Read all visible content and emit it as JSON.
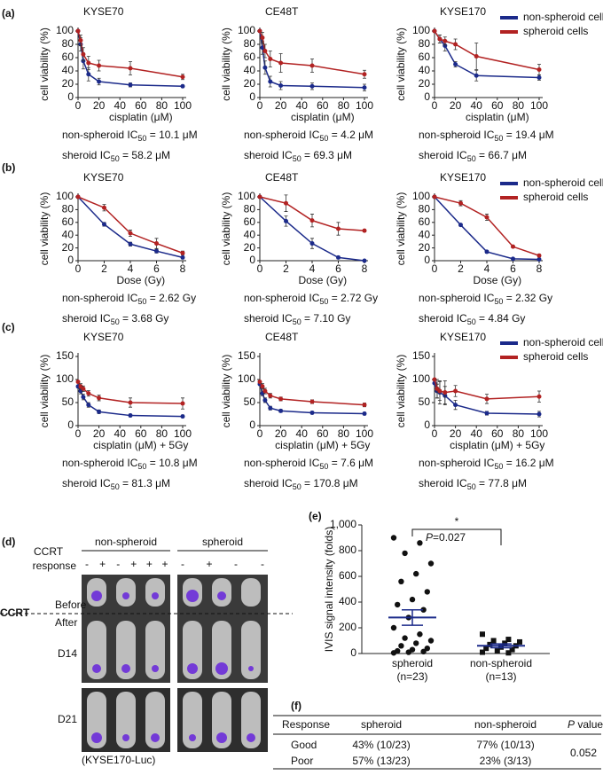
{
  "panel_labels": [
    "(a)",
    "(b)",
    "(c)",
    "(d)",
    "(e)",
    "(f)"
  ],
  "chart_data": [
    {
      "type": "line",
      "title": "KYSE70",
      "x_label": "cisplatin (μM)",
      "y_label": "cell viability (%)",
      "x": [
        0,
        2.5,
        5,
        10,
        20,
        50,
        100
      ],
      "xlim": [
        0,
        100
      ],
      "xticks": [
        0,
        20,
        40,
        60,
        80,
        100
      ],
      "ylim": [
        0,
        100
      ],
      "yticks": [
        0,
        20,
        40,
        60,
        80,
        100
      ],
      "series": [
        {
          "color": "#1b2a8a",
          "values": [
            100,
            80,
            55,
            35,
            24,
            19,
            17
          ],
          "errors": [
            0,
            10,
            12,
            10,
            5,
            3,
            2
          ]
        },
        {
          "color": "#b22222",
          "values": [
            100,
            86,
            65,
            52,
            48,
            44,
            31
          ],
          "errors": [
            0,
            8,
            10,
            10,
            8,
            10,
            4
          ]
        }
      ],
      "ic50": [
        {
          "text": "non-spheroid IC",
          "sub": "50",
          "value": " = 10.1 μM"
        },
        {
          "text": "sheroid IC",
          "sub": "50",
          "value": " = 58.2 μM"
        }
      ]
    },
    {
      "type": "line",
      "title": "CE48T",
      "x_label": "cisplatin (μM)",
      "y_label": "cell viability (%)",
      "x": [
        0,
        2.5,
        5,
        10,
        20,
        50,
        100
      ],
      "xlim": [
        0,
        100
      ],
      "xticks": [
        0,
        20,
        40,
        60,
        80,
        100
      ],
      "ylim": [
        0,
        100
      ],
      "yticks": [
        0,
        20,
        40,
        60,
        80,
        100
      ],
      "series": [
        {
          "color": "#1b2a8a",
          "values": [
            100,
            75,
            45,
            24,
            18,
            17,
            15
          ],
          "errors": [
            0,
            10,
            10,
            8,
            6,
            5,
            5
          ]
        },
        {
          "color": "#b22222",
          "values": [
            100,
            90,
            70,
            58,
            52,
            48,
            35
          ],
          "errors": [
            0,
            8,
            10,
            12,
            14,
            10,
            6
          ]
        }
      ],
      "ic50": [
        {
          "text": "non-spheroid IC",
          "sub": "50",
          "value": " = 4.2 μM"
        },
        {
          "text": "sheroid IC",
          "sub": "50",
          "value": " = 69.3 μM"
        }
      ]
    },
    {
      "type": "line",
      "title": "KYSE170",
      "x_label": "cisplatin (μM)",
      "y_label": "cell viability (%)",
      "x": [
        0,
        5,
        10,
        20,
        40,
        100
      ],
      "xlim": [
        0,
        100
      ],
      "xticks": [
        0,
        20,
        40,
        60,
        80,
        100
      ],
      "ylim": [
        0,
        100
      ],
      "yticks": [
        0,
        20,
        40,
        60,
        80,
        100
      ],
      "legend": "upper-right",
      "series": [
        {
          "name": "non-spheroid cells",
          "color": "#1b2a8a",
          "values": [
            100,
            88,
            78,
            50,
            33,
            30
          ],
          "errors": [
            0,
            6,
            8,
            4,
            8,
            4
          ]
        },
        {
          "name": "spheroid cells",
          "color": "#b22222",
          "values": [
            100,
            88,
            85,
            80,
            62,
            42
          ],
          "errors": [
            0,
            6,
            6,
            8,
            20,
            8
          ]
        }
      ],
      "ic50": [
        {
          "text": "non-spheroid IC",
          "sub": "50",
          "value": " = 19.4 μM"
        },
        {
          "text": "sheroid IC",
          "sub": "50",
          "value": " = 66.7 μM"
        }
      ]
    },
    {
      "type": "line",
      "title": "KYSE70",
      "x_label": "Dose (Gy)",
      "y_label": "cell viability (%)",
      "x": [
        0,
        2,
        4,
        6,
        8
      ],
      "xlim": [
        0,
        8
      ],
      "xticks": [
        0,
        2,
        4,
        6,
        8
      ],
      "ylim": [
        0,
        100
      ],
      "yticks": [
        0,
        20,
        40,
        60,
        80,
        100
      ],
      "series": [
        {
          "color": "#1b2a8a",
          "values": [
            100,
            57,
            26,
            15,
            5
          ],
          "errors": [
            0,
            3,
            3,
            3,
            2
          ]
        },
        {
          "color": "#b22222",
          "values": [
            100,
            83,
            43,
            27,
            12
          ],
          "errors": [
            0,
            5,
            5,
            8,
            3
          ]
        }
      ],
      "ic50": [
        {
          "text": "non-spheroid IC",
          "sub": "50",
          "value": " = 2.62 Gy"
        },
        {
          "text": "sheroid IC",
          "sub": "50",
          "value": " = 3.68 Gy"
        }
      ]
    },
    {
      "type": "line",
      "title": "CE48T",
      "x_label": "Dose (Gy)",
      "y_label": "cell viability (%)",
      "x": [
        0,
        2,
        4,
        6,
        8
      ],
      "xlim": [
        0,
        8
      ],
      "xticks": [
        0,
        2,
        4,
        6,
        8
      ],
      "ylim": [
        0,
        100
      ],
      "yticks": [
        0,
        20,
        40,
        60,
        80,
        100
      ],
      "series": [
        {
          "color": "#1b2a8a",
          "values": [
            100,
            62,
            27,
            5,
            0
          ],
          "errors": [
            0,
            8,
            8,
            2,
            0
          ]
        },
        {
          "color": "#b22222",
          "values": [
            100,
            90,
            63,
            50,
            47
          ],
          "errors": [
            0,
            13,
            10,
            10,
            2
          ]
        }
      ],
      "ic50": [
        {
          "text": "non-spheroid IC",
          "sub": "50",
          "value": " = 2.72 Gy"
        },
        {
          "text": "sheroid IC",
          "sub": "50",
          "value": " = 7.10 Gy"
        }
      ]
    },
    {
      "type": "line",
      "title": "KYSE170",
      "x_label": "Dose (Gy)",
      "y_label": "cell viability (%)",
      "x": [
        0,
        2,
        4,
        6,
        8
      ],
      "xlim": [
        0,
        8
      ],
      "xticks": [
        0,
        2,
        4,
        6,
        8
      ],
      "ylim": [
        0,
        100
      ],
      "yticks": [
        0,
        20,
        40,
        60,
        80,
        100
      ],
      "legend": "upper-right",
      "series": [
        {
          "name": "non-spheroid cells",
          "color": "#1b2a8a",
          "values": [
            100,
            56,
            14,
            3,
            2
          ],
          "errors": [
            0,
            2,
            2,
            1,
            1
          ]
        },
        {
          "name": "spheroid cells",
          "color": "#b22222",
          "values": [
            100,
            90,
            68,
            22,
            8
          ],
          "errors": [
            0,
            4,
            5,
            2,
            2
          ]
        }
      ],
      "ic50": [
        {
          "text": "non-spheroid IC",
          "sub": "50",
          "value": " = 2.32 Gy"
        },
        {
          "text": "sheroid IC",
          "sub": "50",
          "value": " = 4.84 Gy"
        }
      ]
    },
    {
      "type": "line",
      "title": "KYSE70",
      "x_label": "cisplatin (μM) + 5Gy",
      "y_label": "cell viability (%)",
      "x": [
        0,
        2.5,
        5,
        10,
        20,
        50,
        100
      ],
      "xlim": [
        0,
        100
      ],
      "xticks": [
        0,
        20,
        40,
        60,
        80,
        100
      ],
      "ylim": [
        0,
        150
      ],
      "yticks": [
        0,
        50,
        100,
        150
      ],
      "series": [
        {
          "color": "#1b2a8a",
          "values": [
            85,
            75,
            62,
            45,
            30,
            22,
            20
          ],
          "errors": [
            0,
            6,
            6,
            5,
            4,
            3,
            3
          ]
        },
        {
          "color": "#b22222",
          "values": [
            95,
            85,
            80,
            70,
            60,
            50,
            48
          ],
          "errors": [
            0,
            6,
            6,
            6,
            6,
            10,
            12
          ]
        }
      ],
      "ic50": [
        {
          "text": "non-spheroid IC",
          "sub": "50",
          "value": " = 10.8 μM"
        },
        {
          "text": "sheroid IC",
          "sub": "50",
          "value": " = 81.3 μM"
        }
      ]
    },
    {
      "type": "line",
      "title": "CE48T",
      "x_label": "cisplatin (μM) + 5Gy",
      "y_label": "cell viability (%)",
      "x": [
        0,
        2.5,
        5,
        10,
        20,
        50,
        100
      ],
      "xlim": [
        0,
        100
      ],
      "xticks": [
        0,
        20,
        40,
        60,
        80,
        100
      ],
      "ylim": [
        0,
        150
      ],
      "yticks": [
        0,
        50,
        100,
        150
      ],
      "series": [
        {
          "color": "#1b2a8a",
          "values": [
            90,
            70,
            55,
            38,
            32,
            28,
            26
          ],
          "errors": [
            0,
            5,
            5,
            4,
            3,
            3,
            3
          ]
        },
        {
          "color": "#b22222",
          "values": [
            95,
            85,
            75,
            65,
            58,
            52,
            45
          ],
          "errors": [
            0,
            6,
            6,
            5,
            4,
            4,
            4
          ]
        }
      ],
      "ic50": [
        {
          "text": "non-spheroid IC",
          "sub": "50",
          "value": " = 7.6 μM"
        },
        {
          "text": "sheroid IC",
          "sub": "50",
          "value": " = 170.8 μM"
        }
      ]
    },
    {
      "type": "line",
      "title": "KYSE170",
      "x_label": "cisplatin (μM) + 5Gy",
      "y_label": "cell viability (%)",
      "x": [
        0,
        2.5,
        5,
        10,
        20,
        50,
        100
      ],
      "xlim": [
        0,
        100
      ],
      "xticks": [
        0,
        20,
        40,
        60,
        80,
        100
      ],
      "ylim": [
        0,
        150
      ],
      "yticks": [
        0,
        50,
        100,
        150
      ],
      "legend": "upper-right",
      "series": [
        {
          "name": "non-spheroid cells",
          "color": "#1b2a8a",
          "values": [
            92,
            75,
            72,
            65,
            45,
            27,
            25
          ],
          "errors": [
            0,
            15,
            25,
            20,
            10,
            4,
            6
          ]
        },
        {
          "name": "spheroid cells",
          "color": "#b22222",
          "values": [
            100,
            80,
            75,
            72,
            75,
            58,
            63
          ],
          "errors": [
            0,
            20,
            20,
            25,
            12,
            10,
            12
          ]
        }
      ],
      "ic50": [
        {
          "text": "non-spheroid IC",
          "sub": "50",
          "value": " = 16.2 μM"
        },
        {
          "text": "sheroid IC",
          "sub": "50",
          "value": " = 77.8 μM"
        }
      ]
    },
    {
      "type": "dot",
      "y_label": "IVIS signal intensity (folds)",
      "ylim": [
        0,
        1000
      ],
      "yticks": [
        0,
        200,
        400,
        600,
        800,
        {
          "value": 1000,
          "label": "1,000"
        }
      ],
      "annotation": "*",
      "p_value": {
        "symbol": "P",
        "text": "=0.027"
      },
      "groups": [
        {
          "name": "spheroid",
          "note": "(n=23)",
          "marker": "circle",
          "values": [
            900,
            860,
            780,
            700,
            620,
            560,
            480,
            420,
            380,
            340,
            280,
            200,
            150,
            120,
            100,
            80,
            60,
            40,
            30,
            20,
            15,
            10,
            5
          ],
          "mean": 280,
          "sem": 60
        },
        {
          "name": "non-spheroid",
          "note": "(n=13)",
          "marker": "square",
          "values": [
            150,
            110,
            100,
            90,
            80,
            70,
            60,
            50,
            40,
            30,
            20,
            10,
            5
          ],
          "mean": 60,
          "sem": 15
        }
      ]
    }
  ],
  "mouse_panel": {
    "ccrt": "CCRT",
    "response": "response",
    "groups": [
      {
        "name": "non-spheroid",
        "responses": [
          "-",
          "+",
          "-",
          "+",
          "+",
          "+"
        ]
      },
      {
        "name": "spheroid",
        "responses": [
          "-",
          "+",
          "-",
          "-"
        ]
      }
    ],
    "before": "Before",
    "after": "After",
    "ccrt_divider": "CCRT",
    "rows": [
      "D14",
      "D21"
    ],
    "caption": "(KYSE170-Luc)"
  },
  "table": {
    "header": [
      "Response",
      "spheroid",
      "non-spheroid"
    ],
    "p_header": {
      "symbol": "P",
      "text": " value"
    },
    "rows": [
      [
        "Good",
        "43% (10/23)",
        "77% (10/13)"
      ],
      [
        "Poor",
        "57% (13/23)",
        "23% (3/13)"
      ]
    ],
    "p_value": "0.052"
  }
}
